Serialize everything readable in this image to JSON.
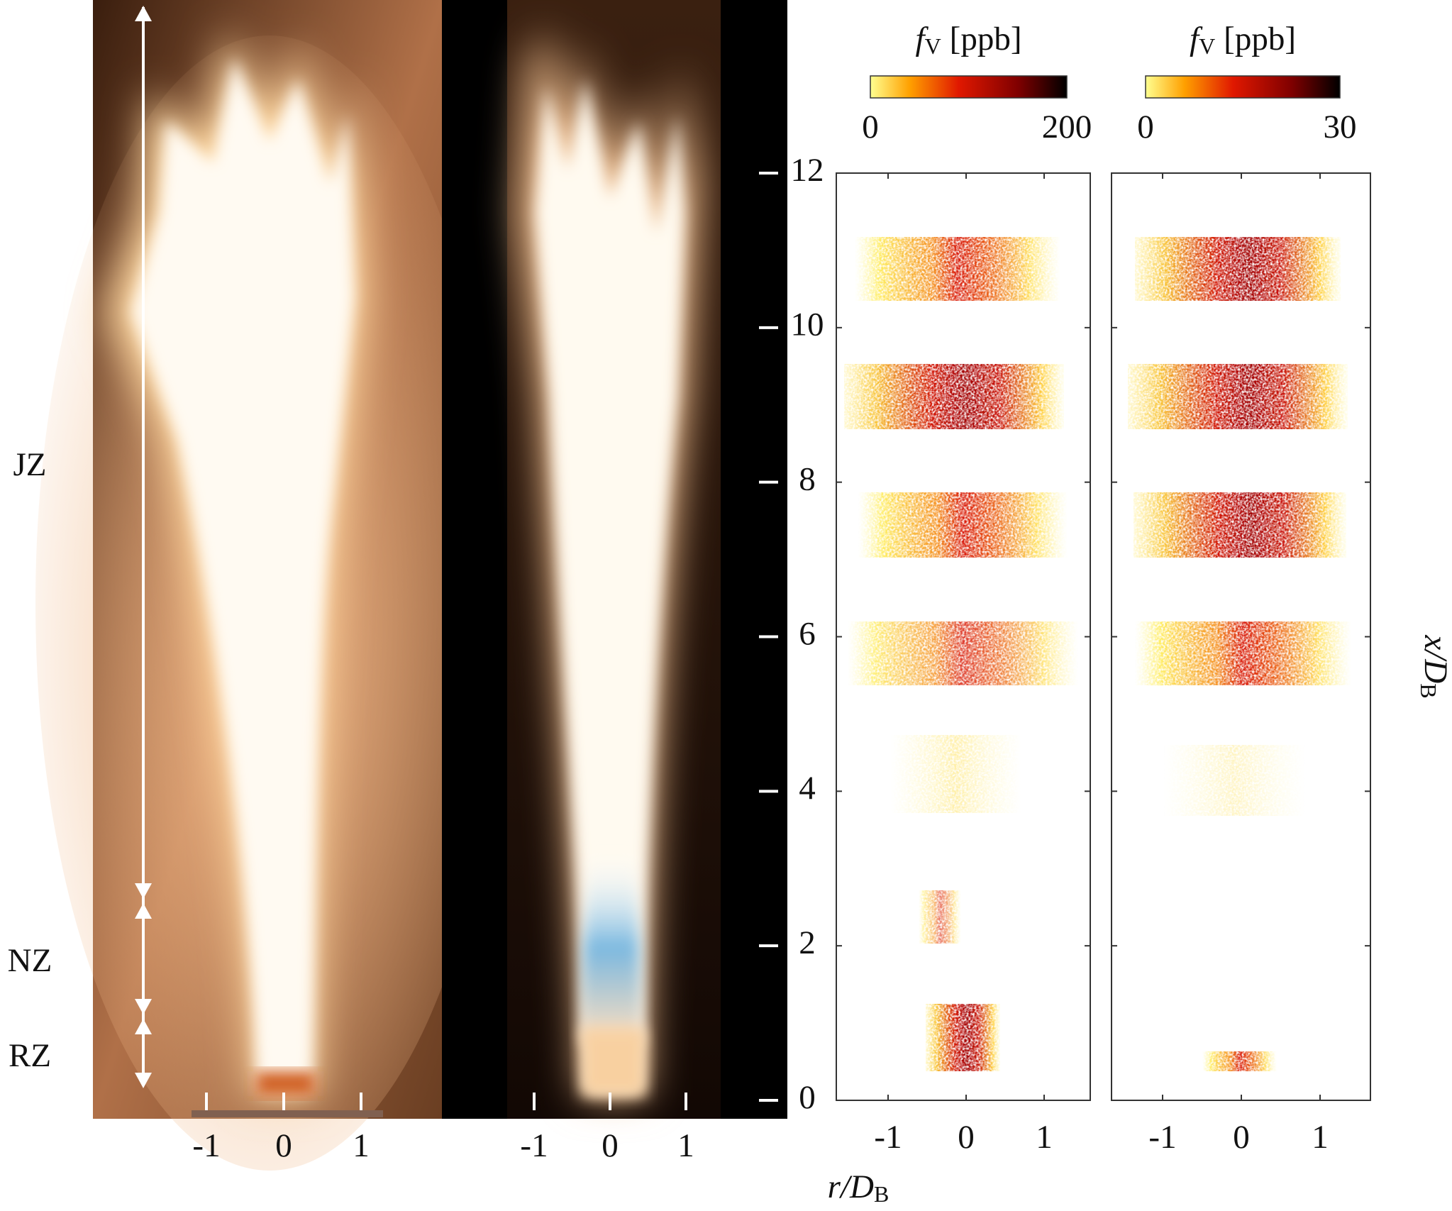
{
  "zones": [
    "JZ",
    "NZ",
    "RZ"
  ],
  "photo_ticks": [
    -1,
    0,
    1
  ],
  "panels": [
    {
      "colorbar": {
        "symbol": "f",
        "sub": "V",
        "unit": "[ppb]",
        "ticks": [
          0,
          200
        ]
      }
    },
    {
      "colorbar": {
        "symbol": "f",
        "sub": "V",
        "unit": "[ppb]",
        "ticks": [
          0,
          30
        ]
      }
    }
  ],
  "xticks": [
    -1,
    0,
    1
  ],
  "yticks": [
    0,
    2,
    4,
    6,
    8,
    10,
    12
  ],
  "xlabel": {
    "symbol": "r/D",
    "sub": "B"
  },
  "ylabel": {
    "symbol": "x/D",
    "sub": "B"
  }
}
